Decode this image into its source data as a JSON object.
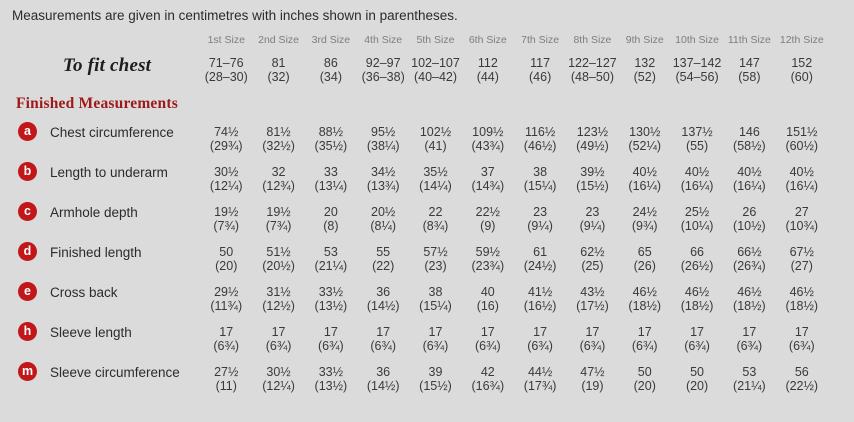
{
  "intro": "Measurements are given in centimetres with inches shown in parentheses.",
  "size_headers": [
    "1st Size",
    "2nd Size",
    "3rd Size",
    "4th Size",
    "5th Size",
    "6th Size",
    "7th Size",
    "8th Size",
    "9th Size",
    "10th Size",
    "11th Size",
    "12th Size"
  ],
  "to_fit_chest": {
    "label": "To fit chest",
    "cm": [
      "71–76",
      "81",
      "86",
      "92–97",
      "102–107",
      "112",
      "117",
      "122–127",
      "132",
      "137–142",
      "147",
      "152"
    ],
    "in": [
      "(28–30)",
      "(32)",
      "(34)",
      "(36–38)",
      "(40–42)",
      "(44)",
      "(46)",
      "(48–50)",
      "(52)",
      "(54–56)",
      "(58)",
      "(60)"
    ]
  },
  "section_heading": "Finished Measurements",
  "rows": [
    {
      "badge": "a",
      "label": "Chest circumference",
      "cm": [
        "74½",
        "81½",
        "88½",
        "95½",
        "102½",
        "109½",
        "116½",
        "123½",
        "130½",
        "137½",
        "146",
        "151½"
      ],
      "in": [
        "(29¾)",
        "(32½)",
        "(35½)",
        "(38¼)",
        "(41)",
        "(43¾)",
        "(46½)",
        "(49½)",
        "(52¼)",
        "(55)",
        "(58½)",
        "(60½)"
      ]
    },
    {
      "badge": "b",
      "label": "Length to underarm",
      "cm": [
        "30½",
        "32",
        "33",
        "34½",
        "35½",
        "37",
        "38",
        "39½",
        "40½",
        "40½",
        "40½",
        "40½"
      ],
      "in": [
        "(12¼)",
        "(12¾)",
        "(13¼)",
        "(13¾)",
        "(14¼)",
        "(14¾)",
        "(15¼)",
        "(15½)",
        "(16¼)",
        "(16¼)",
        "(16¼)",
        "(16¼)"
      ]
    },
    {
      "badge": "c",
      "label": "Armhole depth",
      "cm": [
        "19½",
        "19½",
        "20",
        "20½",
        "22",
        "22½",
        "23",
        "23",
        "24½",
        "25½",
        "26",
        "27"
      ],
      "in": [
        "(7¾)",
        "(7¾)",
        "(8)",
        "(8¼)",
        "(8¾)",
        "(9)",
        "(9¼)",
        "(9¼)",
        "(9¾)",
        "(10¼)",
        "(10½)",
        "(10¾)"
      ]
    },
    {
      "badge": "d",
      "label": "Finished length",
      "cm": [
        "50",
        "51½",
        "53",
        "55",
        "57½",
        "59½",
        "61",
        "62½",
        "65",
        "66",
        "66½",
        "67½"
      ],
      "in": [
        "(20)",
        "(20½)",
        "(21¼)",
        "(22)",
        "(23)",
        "(23¾)",
        "(24½)",
        "(25)",
        "(26)",
        "(26½)",
        "(26¾)",
        "(27)"
      ]
    },
    {
      "badge": "e",
      "label": "Cross back",
      "cm": [
        "29½",
        "31½",
        "33½",
        "36",
        "38",
        "40",
        "41½",
        "43½",
        "46½",
        "46½",
        "46½",
        "46½"
      ],
      "in": [
        "(11¾)",
        "(12½)",
        "(13½)",
        "(14½)",
        "(15¼)",
        "(16)",
        "(16½)",
        "(17½)",
        "(18½)",
        "(18½)",
        "(18½)",
        "(18½)"
      ]
    },
    {
      "badge": "h",
      "label": "Sleeve length",
      "cm": [
        "17",
        "17",
        "17",
        "17",
        "17",
        "17",
        "17",
        "17",
        "17",
        "17",
        "17",
        "17"
      ],
      "in": [
        "(6¾)",
        "(6¾)",
        "(6¾)",
        "(6¾)",
        "(6¾)",
        "(6¾)",
        "(6¾)",
        "(6¾)",
        "(6¾)",
        "(6¾)",
        "(6¾)",
        "(6¾)"
      ]
    },
    {
      "badge": "m",
      "label": "Sleeve circumference",
      "cm": [
        "27½",
        "30½",
        "33½",
        "36",
        "39",
        "42",
        "44½",
        "47½",
        "50",
        "50",
        "53",
        "56"
      ],
      "in": [
        "(11)",
        "(12¼)",
        "(13½)",
        "(14½)",
        "(15½)",
        "(16¾)",
        "(17¾)",
        "(19)",
        "(20)",
        "(20)",
        "(21¼)",
        "(22½)"
      ]
    }
  ]
}
